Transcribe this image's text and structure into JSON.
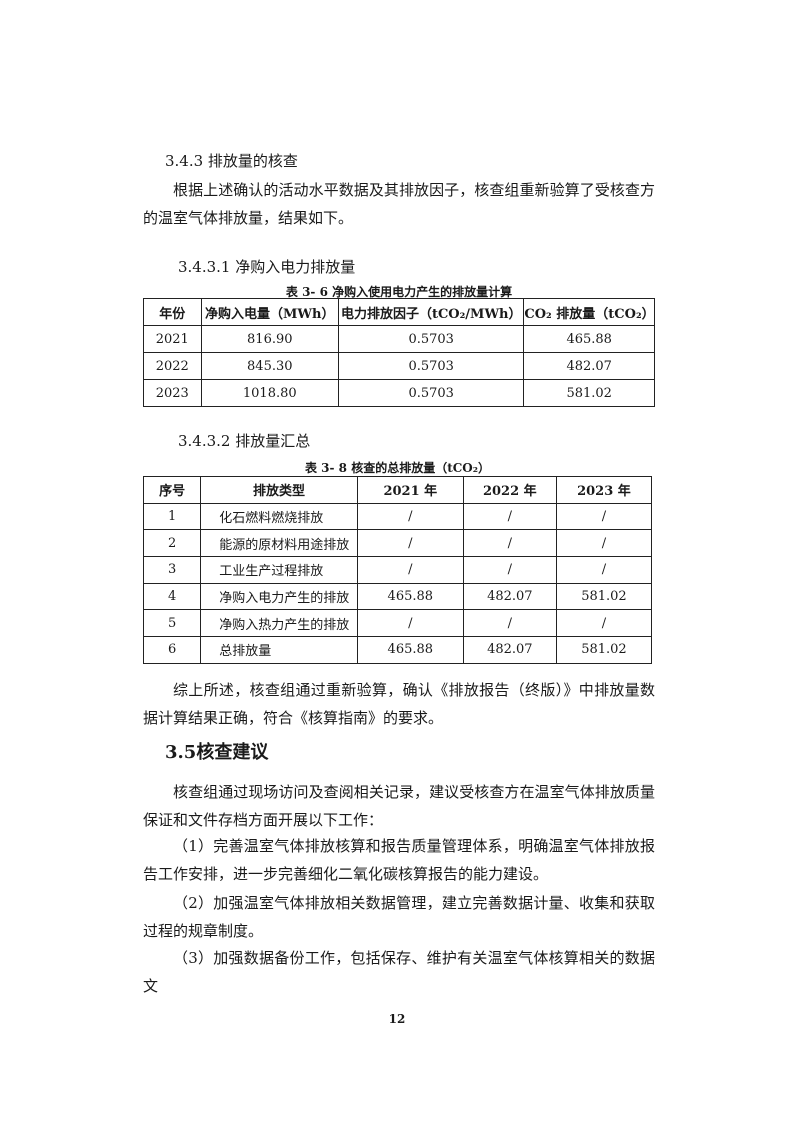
{
  "section_343": {
    "heading": "3.4.3 排放量的核查",
    "paragraph": "根据上述确认的活动水平数据及其排放因子，核查组重新验算了受核查方的温室气体排放量，结果如下。"
  },
  "sub_3431": {
    "heading": "3.4.3.1 净购入电力排放量",
    "table": {
      "caption": "表 3- 6 净购入使用电力产生的排放量计算",
      "header": [
        "年份",
        "净购入电量（MWh）",
        "电力排放因子（tCO₂/MWh）",
        "CO₂ 排放量（tCO₂）"
      ],
      "rows": [
        [
          "2021",
          "816.90",
          "0.5703",
          "465.88"
        ],
        [
          "2022",
          "845.30",
          "0.5703",
          "482.07"
        ],
        [
          "2023",
          "1018.80",
          "0.5703",
          "581.02"
        ]
      ]
    }
  },
  "sub_3432": {
    "heading": "3.4.3.2 排放量汇总",
    "table": {
      "caption": "表 3- 8  核查的总排放量（tCO₂）",
      "header": [
        "序号",
        "排放类型",
        "2021 年",
        "2022 年",
        "2023 年"
      ],
      "rows": [
        [
          "1",
          "化石燃料燃烧排放",
          "/",
          "/",
          "/"
        ],
        [
          "2",
          "能源的原材料用途排放",
          "/",
          "/",
          "/"
        ],
        [
          "3",
          "工业生产过程排放",
          "/",
          "/",
          "/"
        ],
        [
          "4",
          "净购入电力产生的排放",
          "465.88",
          "482.07",
          "581.02"
        ],
        [
          "5",
          "净购入热力产生的排放",
          "/",
          "/",
          "/"
        ],
        [
          "6",
          "总排放量",
          "465.88",
          "482.07",
          "581.02"
        ]
      ]
    },
    "conclusion": "综上所述，核查组通过重新验算，确认《排放报告（终版）》中排放量数据计算结果正确，符合《核算指南》的要求。"
  },
  "section_35": {
    "heading": "3.5核查建议",
    "intro": "核查组通过现场访问及查阅相关记录，建议受核查方在温室气体排放质量保证和文件存档方面开展以下工作：",
    "items": [
      "（1）完善温室气体排放核算和报告质量管理体系，明确温室气体排放报告工作安排，进一步完善细化二氧化碳核算报告的能力建设。",
      "（2）加强温室气体排放相关数据管理，建立完善数据计量、收集和获取过程的规章制度。",
      "（3）加强数据备份工作，包括保存、维护有关温室气体核算相关的数据文"
    ]
  },
  "page_number": "12"
}
